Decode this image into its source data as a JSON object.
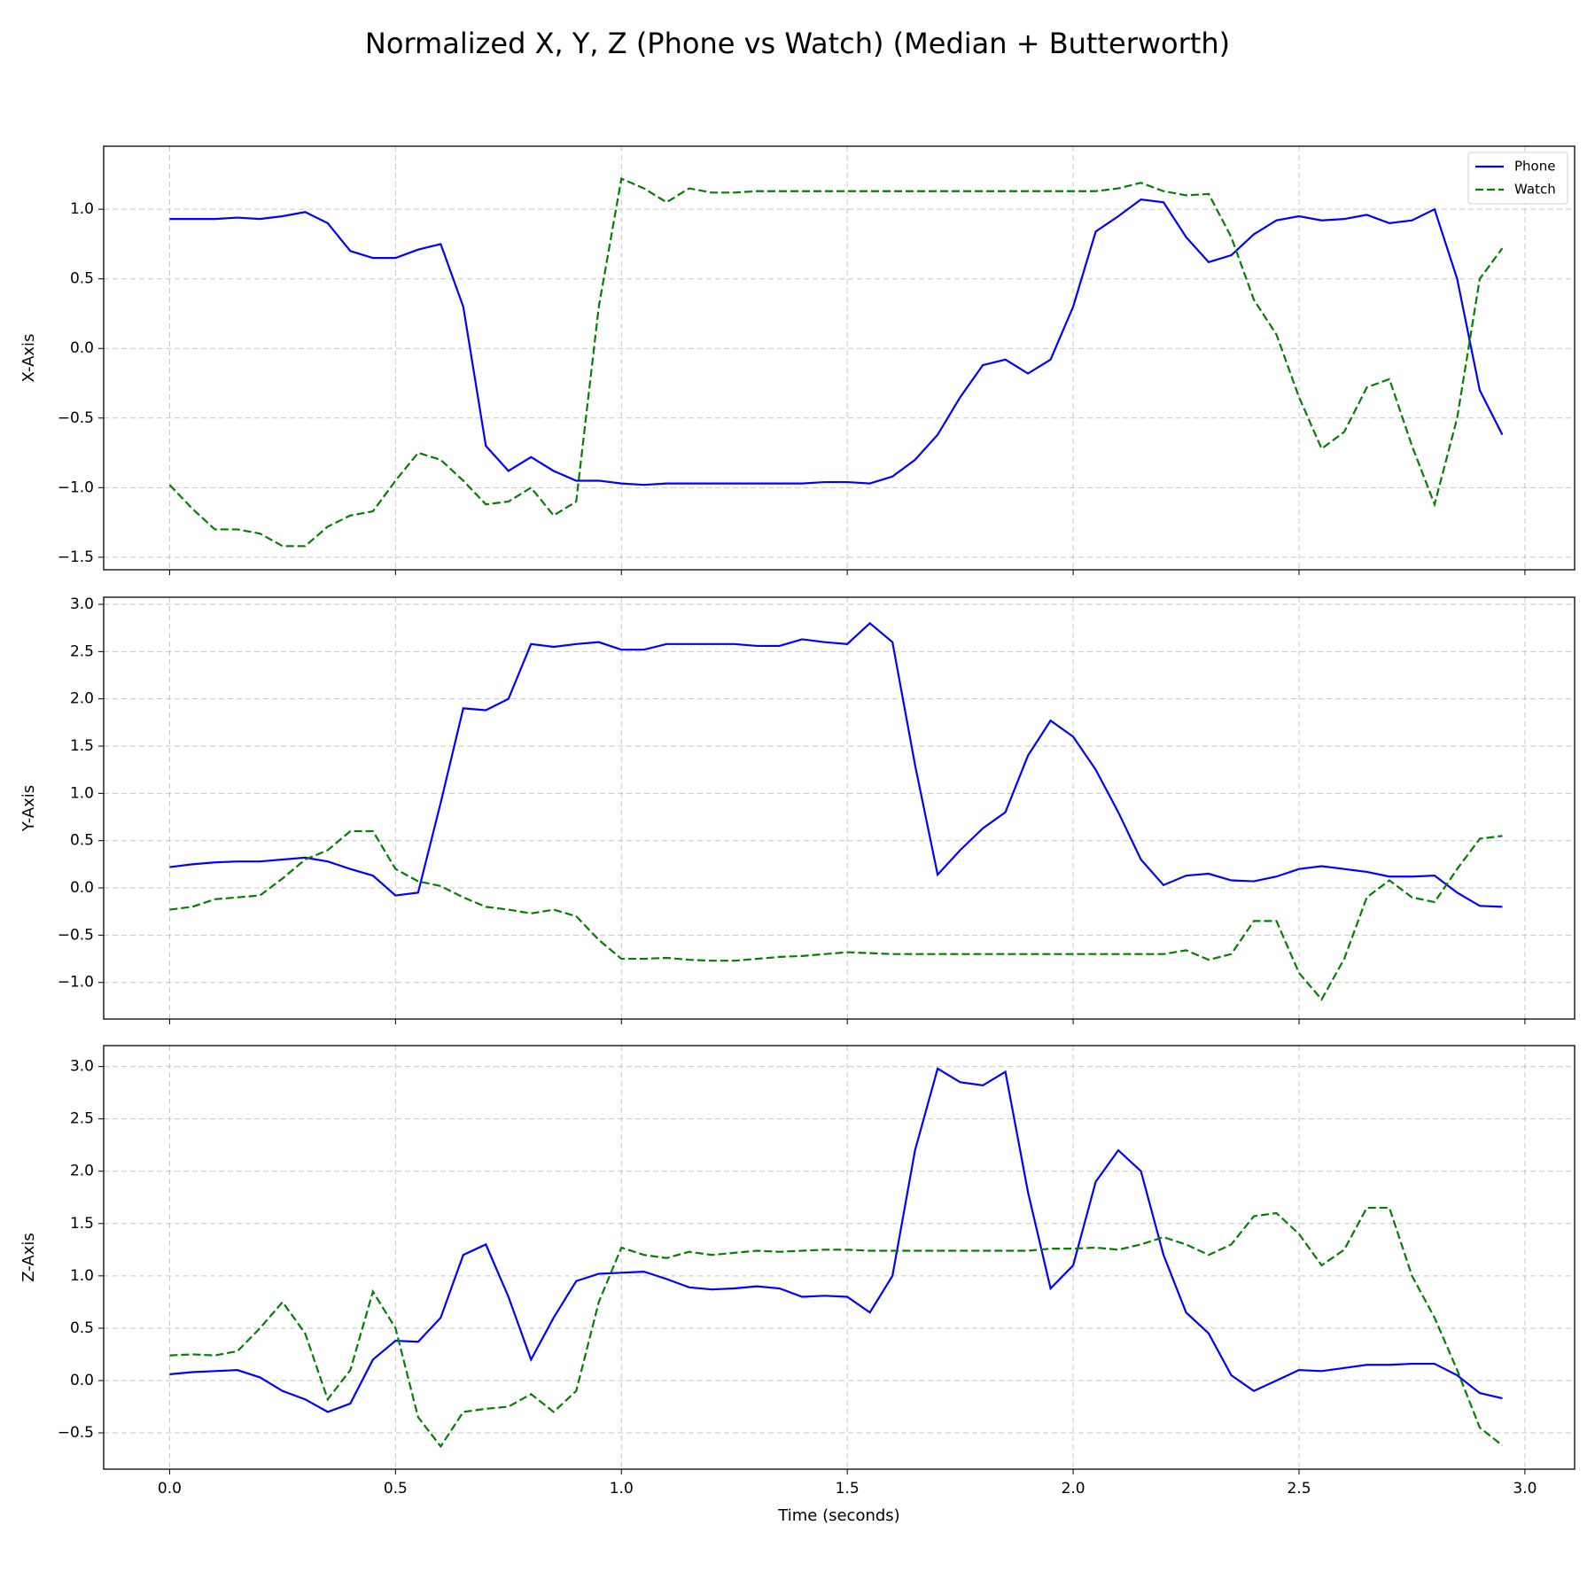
{
  "title": "Normalized X, Y, Z (Phone vs Watch) (Median + Butterworth)",
  "chart_data": [
    {
      "type": "line",
      "ylabel": "X-Axis",
      "grid": true,
      "legend": "upper right",
      "x": [
        0,
        0.05,
        0.1,
        0.15,
        0.2,
        0.25,
        0.3,
        0.35,
        0.4,
        0.45,
        0.5,
        0.55,
        0.6,
        0.65,
        0.7,
        0.75,
        0.8,
        0.85,
        0.9,
        0.95,
        1.0,
        1.05,
        1.1,
        1.15,
        1.2,
        1.25,
        1.3,
        1.35,
        1.4,
        1.45,
        1.5,
        1.55,
        1.6,
        1.65,
        1.7,
        1.75,
        1.8,
        1.85,
        1.9,
        1.95,
        2.0,
        2.05,
        2.1,
        2.15,
        2.2,
        2.25,
        2.3,
        2.35,
        2.4,
        2.45,
        2.5,
        2.55,
        2.6,
        2.65,
        2.7,
        2.75,
        2.8,
        2.85,
        2.9,
        2.95
      ],
      "xlim": [
        -0.146,
        3.11
      ],
      "xticks": [
        0,
        0.5,
        1,
        1.5,
        2,
        2.5,
        3
      ],
      "ylim": [
        -1.59,
        1.453
      ],
      "yticks": [
        {
          "value": -1.5,
          "label": "−1.5"
        },
        {
          "value": -1,
          "label": "−1.0"
        },
        {
          "value": -0.5,
          "label": "−0.5"
        },
        {
          "value": 0,
          "label": "0.0"
        },
        0.5,
        {
          "value": 1,
          "label": "1.0"
        }
      ],
      "series": [
        {
          "name": "Phone",
          "color": "#0000ff",
          "style": "solid",
          "values": [
            0.93,
            0.93,
            0.93,
            0.94,
            0.93,
            0.95,
            0.98,
            0.9,
            0.7,
            0.65,
            0.65,
            0.71,
            0.75,
            0.3,
            -0.7,
            -0.88,
            -0.78,
            -0.88,
            -0.95,
            -0.95,
            -0.97,
            -0.98,
            -0.97,
            -0.97,
            -0.97,
            -0.97,
            -0.97,
            -0.97,
            -0.97,
            -0.96,
            -0.96,
            -0.97,
            -0.92,
            -0.8,
            -0.62,
            -0.35,
            -0.12,
            -0.08,
            -0.18,
            -0.08,
            0.3,
            0.84,
            0.95,
            1.07,
            1.05,
            0.8,
            0.62,
            0.67,
            0.82,
            0.92,
            0.95,
            0.92,
            0.93,
            0.96,
            0.9,
            0.92,
            1.0,
            0.5,
            -0.3,
            -0.62
          ]
        },
        {
          "name": "Watch",
          "color": "#008000",
          "style": "dashed",
          "values": [
            -0.98,
            -1.15,
            -1.3,
            -1.3,
            -1.33,
            -1.42,
            -1.42,
            -1.28,
            -1.2,
            -1.17,
            -0.95,
            -0.75,
            -0.8,
            -0.95,
            -1.12,
            -1.1,
            -1.0,
            -1.2,
            -1.1,
            0.3,
            1.22,
            1.15,
            1.05,
            1.15,
            1.12,
            1.12,
            1.13,
            1.13,
            1.13,
            1.13,
            1.13,
            1.13,
            1.13,
            1.13,
            1.13,
            1.13,
            1.13,
            1.13,
            1.13,
            1.13,
            1.13,
            1.13,
            1.15,
            1.19,
            1.13,
            1.1,
            1.11,
            0.8,
            0.35,
            0.1,
            -0.35,
            -0.72,
            -0.6,
            -0.28,
            -0.22,
            -0.7,
            -1.12,
            -0.5,
            0.5,
            0.72
          ]
        }
      ]
    },
    {
      "type": "line",
      "ylabel": "Y-Axis",
      "grid": true,
      "x": [
        0,
        0.05,
        0.1,
        0.15,
        0.2,
        0.25,
        0.3,
        0.35,
        0.4,
        0.45,
        0.5,
        0.55,
        0.6,
        0.65,
        0.7,
        0.75,
        0.8,
        0.85,
        0.9,
        0.95,
        1.0,
        1.05,
        1.1,
        1.15,
        1.2,
        1.25,
        1.3,
        1.35,
        1.4,
        1.45,
        1.5,
        1.55,
        1.6,
        1.65,
        1.7,
        1.75,
        1.8,
        1.85,
        1.9,
        1.95,
        2.0,
        2.05,
        2.1,
        2.15,
        2.2,
        2.25,
        2.3,
        2.35,
        2.4,
        2.45,
        2.5,
        2.55,
        2.6,
        2.65,
        2.7,
        2.75,
        2.8,
        2.85,
        2.9,
        2.95
      ],
      "xlim": [
        -0.146,
        3.11
      ],
      "xticks": [
        0,
        0.5,
        1,
        1.5,
        2,
        2.5,
        3
      ],
      "ylim": [
        -1.387,
        3.075
      ],
      "yticks": [
        {
          "value": -1,
          "label": "−1.0"
        },
        {
          "value": -0.5,
          "label": "−0.5"
        },
        {
          "value": 0,
          "label": "0.0"
        },
        0.5,
        {
          "value": 1,
          "label": "1.0"
        },
        1.5,
        {
          "value": 2,
          "label": "2.0"
        },
        2.5,
        {
          "value": 3,
          "label": "3.0"
        }
      ],
      "series": [
        {
          "name": "Phone",
          "color": "#0000ff",
          "style": "solid",
          "values": [
            0.22,
            0.25,
            0.27,
            0.28,
            0.28,
            0.3,
            0.32,
            0.28,
            0.2,
            0.13,
            -0.08,
            -0.05,
            0.9,
            1.9,
            1.88,
            2.0,
            2.58,
            2.55,
            2.58,
            2.6,
            2.52,
            2.52,
            2.58,
            2.58,
            2.58,
            2.58,
            2.56,
            2.56,
            2.63,
            2.6,
            2.58,
            2.8,
            2.6,
            1.3,
            0.14,
            0.4,
            0.63,
            0.8,
            1.4,
            1.77,
            1.6,
            1.25,
            0.8,
            0.3,
            0.03,
            0.13,
            0.15,
            0.08,
            0.07,
            0.12,
            0.2,
            0.23,
            0.2,
            0.17,
            0.12,
            0.12,
            0.13,
            -0.05,
            -0.19,
            -0.2
          ]
        },
        {
          "name": "Watch",
          "color": "#008000",
          "style": "dashed",
          "values": [
            -0.23,
            -0.2,
            -0.12,
            -0.1,
            -0.08,
            0.1,
            0.3,
            0.4,
            0.6,
            0.6,
            0.2,
            0.07,
            0.02,
            -0.1,
            -0.2,
            -0.23,
            -0.27,
            -0.23,
            -0.3,
            -0.55,
            -0.75,
            -0.75,
            -0.74,
            -0.76,
            -0.77,
            -0.77,
            -0.75,
            -0.73,
            -0.72,
            -0.7,
            -0.68,
            -0.69,
            -0.7,
            -0.7,
            -0.7,
            -0.7,
            -0.7,
            -0.7,
            -0.7,
            -0.7,
            -0.7,
            -0.7,
            -0.7,
            -0.7,
            -0.7,
            -0.66,
            -0.76,
            -0.7,
            -0.35,
            -0.35,
            -0.9,
            -1.18,
            -0.75,
            -0.1,
            0.08,
            -0.1,
            -0.15,
            0.2,
            0.52,
            0.55
          ]
        }
      ]
    },
    {
      "type": "line",
      "ylabel": "Z-Axis",
      "xlabel": "Time (seconds)",
      "grid": true,
      "x": [
        0,
        0.05,
        0.1,
        0.15,
        0.2,
        0.25,
        0.3,
        0.35,
        0.4,
        0.45,
        0.5,
        0.55,
        0.6,
        0.65,
        0.7,
        0.75,
        0.8,
        0.85,
        0.9,
        0.95,
        1.0,
        1.05,
        1.1,
        1.15,
        1.2,
        1.25,
        1.3,
        1.35,
        1.4,
        1.45,
        1.5,
        1.55,
        1.6,
        1.65,
        1.7,
        1.75,
        1.8,
        1.85,
        1.9,
        1.95,
        2.0,
        2.05,
        2.1,
        2.15,
        2.2,
        2.25,
        2.3,
        2.35,
        2.4,
        2.45,
        2.5,
        2.55,
        2.6,
        2.65,
        2.7,
        2.75,
        2.8,
        2.85,
        2.9,
        2.95
      ],
      "xlim": [
        -0.146,
        3.11
      ],
      "xticks": [
        {
          "value": 0,
          "label": "0.0"
        },
        0.5,
        {
          "value": 1,
          "label": "1.0"
        },
        1.5,
        {
          "value": 2,
          "label": "2.0"
        },
        2.5,
        {
          "value": 3,
          "label": "3.0"
        }
      ],
      "ylim": [
        -0.847,
        3.2
      ],
      "yticks": [
        {
          "value": -0.5,
          "label": "−0.5"
        },
        {
          "value": 0,
          "label": "0.0"
        },
        0.5,
        {
          "value": 1,
          "label": "1.0"
        },
        1.5,
        {
          "value": 2,
          "label": "2.0"
        },
        2.5,
        {
          "value": 3,
          "label": "3.0"
        }
      ],
      "series": [
        {
          "name": "Phone",
          "color": "#0000ff",
          "style": "solid",
          "values": [
            0.06,
            0.08,
            0.09,
            0.1,
            0.03,
            -0.1,
            -0.18,
            -0.3,
            -0.22,
            0.2,
            0.38,
            0.37,
            0.6,
            1.2,
            1.3,
            0.8,
            0.2,
            0.6,
            0.95,
            1.02,
            1.03,
            1.04,
            0.97,
            0.89,
            0.87,
            0.88,
            0.9,
            0.88,
            0.8,
            0.81,
            0.8,
            0.65,
            1.0,
            2.2,
            2.98,
            2.85,
            2.82,
            2.95,
            1.8,
            0.88,
            1.1,
            1.9,
            2.2,
            2.0,
            1.2,
            0.65,
            0.45,
            0.05,
            -0.1,
            0,
            0.1,
            0.09,
            0.12,
            0.15,
            0.15,
            0.16,
            0.16,
            0.05,
            -0.12,
            -0.17
          ]
        },
        {
          "name": "Watch",
          "color": "#008000",
          "style": "dashed",
          "values": [
            0.24,
            0.25,
            0.24,
            0.28,
            0.5,
            0.75,
            0.45,
            -0.18,
            0.1,
            0.85,
            0.5,
            -0.35,
            -0.63,
            -0.3,
            -0.27,
            -0.25,
            -0.13,
            -0.3,
            -0.1,
            0.75,
            1.27,
            1.2,
            1.17,
            1.23,
            1.2,
            1.22,
            1.24,
            1.23,
            1.24,
            1.25,
            1.25,
            1.24,
            1.24,
            1.24,
            1.24,
            1.24,
            1.24,
            1.24,
            1.24,
            1.26,
            1.26,
            1.27,
            1.25,
            1.3,
            1.37,
            1.3,
            1.2,
            1.3,
            1.57,
            1.6,
            1.4,
            1.1,
            1.25,
            1.65,
            1.65,
            1.0,
            0.6,
            0.1,
            -0.45,
            -0.62
          ]
        }
      ]
    }
  ]
}
